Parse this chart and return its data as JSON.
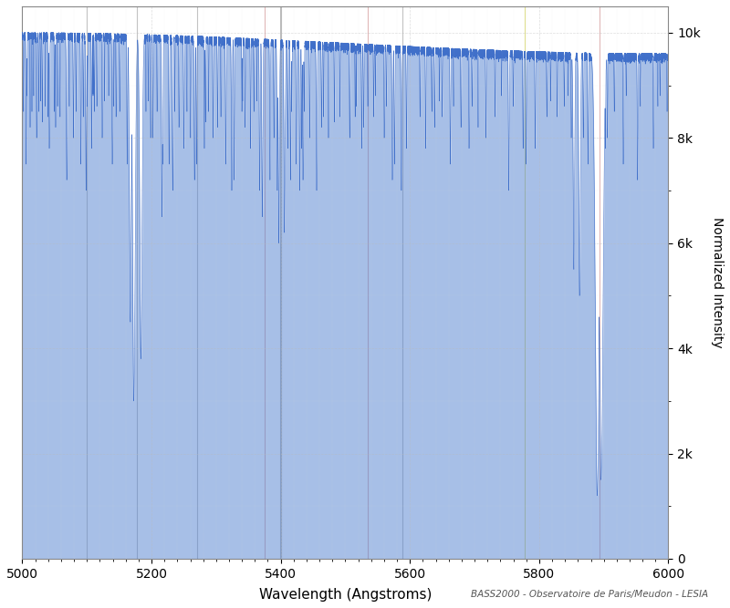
{
  "xlabel": "Wavelength (Angstroms)",
  "ylabel": "Normalized Intensity",
  "xlim": [
    5000,
    6000
  ],
  "ylim": [
    0,
    10500
  ],
  "yticks": [
    0,
    2000,
    4000,
    6000,
    8000,
    10000
  ],
  "ytick_labels": [
    "0",
    "2k",
    "4k",
    "6k",
    "8k",
    "10k"
  ],
  "xticks": [
    5000,
    5200,
    5400,
    5600,
    5800,
    6000
  ],
  "line_color": "#3a6bc8",
  "fill_color": "#5080d0",
  "background_color": "#ffffff",
  "grid_major_color": "#bbbbbb",
  "grid_minor_color": "#dddddd",
  "figsize": [
    8.0,
    6.67
  ],
  "dpi": 100,
  "watermark": "BASS2000 - Observatoire de Paris/Meudon - LESIA",
  "vline_colors": {
    "gray": "#aaaaaa",
    "pink": "#e8aaaa",
    "yellow": "#e8e870",
    "cyan": "#aadddd"
  }
}
